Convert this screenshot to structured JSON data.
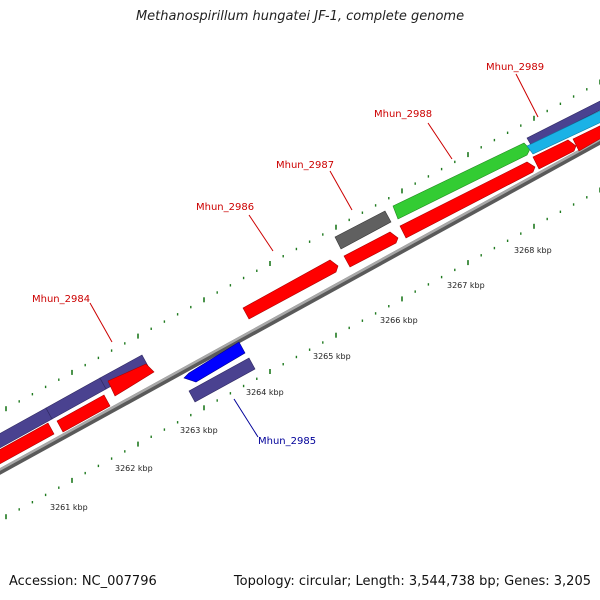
{
  "title": "Methanospirillum hungatei JF-1, complete genome",
  "footer": {
    "accession": "Accession: NC_007796",
    "summary": "Topology: circular; Length: 3,544,738 bp; Genes: 3,205"
  },
  "colors": {
    "backbone": "#8f8f8f",
    "tick": "#1f7a1f",
    "label_forward": "#cc0000",
    "label_reverse": "#000099",
    "cds_red": "#ff0000",
    "cds_slate": "#4a4290",
    "cds_blue": "#0000ff",
    "cds_gray": "#606060",
    "cds_green": "#33cc33",
    "cds_cyan": "#1ab2e6"
  },
  "scale_labels": [
    "3261 kbp",
    "3262 kbp",
    "3263 kbp",
    "3264 kbp",
    "3265 kbp",
    "3266 kbp",
    "3267 kbp",
    "3268 kbp"
  ],
  "gene_labels": [
    {
      "id": "Mhun_2984",
      "text": "Mhun_2984",
      "strand": "forward"
    },
    {
      "id": "Mhun_2985",
      "text": "Mhun_2985",
      "strand": "reverse"
    },
    {
      "id": "Mhun_2986",
      "text": "Mhun_2986",
      "strand": "forward"
    },
    {
      "id": "Mhun_2987",
      "text": "Mhun_2987",
      "strand": "forward"
    },
    {
      "id": "Mhun_2988",
      "text": "Mhun_2988",
      "strand": "forward"
    },
    {
      "id": "Mhun_2989",
      "text": "Mhun_2989",
      "strand": "forward"
    }
  ]
}
